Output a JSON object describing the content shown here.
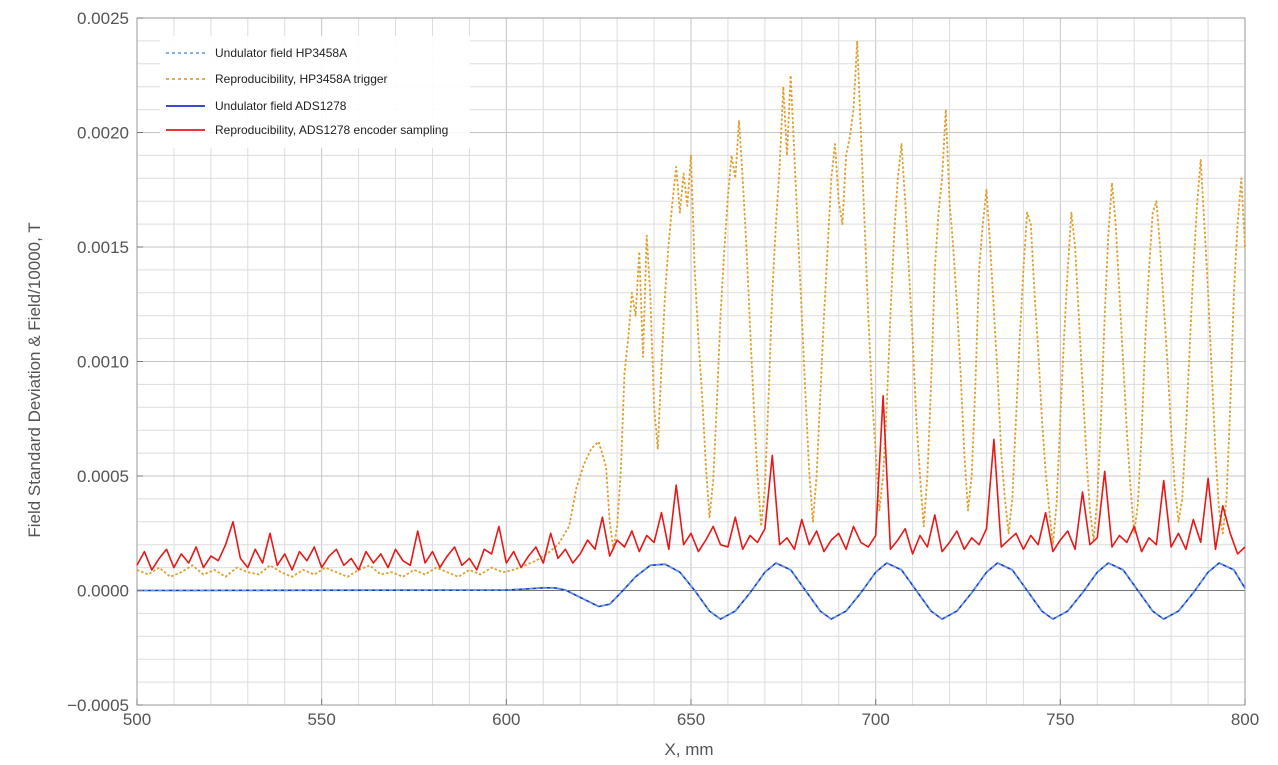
{
  "chart_data": {
    "type": "line",
    "title": "",
    "xlabel": "X, mm",
    "ylabel": "Field Standard Deviation & Field/10000, T",
    "xlim": [
      500,
      800
    ],
    "ylim": [
      -0.0005,
      0.0025
    ],
    "x_ticks": [
      500,
      550,
      600,
      650,
      700,
      750,
      800
    ],
    "x_tick_labels": [
      "500",
      "550",
      "600",
      "650",
      "700",
      "750",
      "800"
    ],
    "y_ticks": [
      -0.0005,
      0.0,
      0.0005,
      0.001,
      0.0015,
      0.002,
      0.0025
    ],
    "y_tick_labels": [
      "−0.0005",
      "0.0000",
      "0.0005",
      "0.0010",
      "0.0015",
      "0.0020",
      "0.0025"
    ],
    "grid": true,
    "legend_position": "top-left",
    "series": [
      {
        "name": "Undulator field HP3458A",
        "color": "#5b9bd5",
        "style": "dashed",
        "x": [
          500,
          600,
          605,
          610,
          613,
          616,
          620,
          625,
          628,
          631,
          635,
          639,
          643,
          647,
          651,
          655,
          658,
          662,
          666,
          670,
          673,
          677,
          681,
          685,
          688,
          692,
          696,
          700,
          703,
          707,
          711,
          715,
          718,
          722,
          726,
          730,
          733,
          737,
          741,
          745,
          748,
          752,
          756,
          760,
          763,
          767,
          771,
          775,
          778,
          782,
          786,
          790,
          793,
          797,
          800
        ],
        "y": [
          0.0,
          2e-06,
          6e-06,
          1.2e-05,
          1.2e-05,
          2e-06,
          -3e-05,
          -7e-05,
          -6e-05,
          -1e-05,
          6e-05,
          0.00011,
          0.000115,
          8e-05,
          0.0,
          -9e-05,
          -0.000125,
          -9e-05,
          -1e-05,
          8e-05,
          0.00012,
          9e-05,
          0.0,
          -9e-05,
          -0.000125,
          -9e-05,
          -1e-05,
          8e-05,
          0.00012,
          9e-05,
          0.0,
          -9e-05,
          -0.000125,
          -9e-05,
          -1e-05,
          8e-05,
          0.00012,
          9e-05,
          0.0,
          -9e-05,
          -0.000125,
          -9e-05,
          -1e-05,
          8e-05,
          0.00012,
          9e-05,
          0.0,
          -9e-05,
          -0.000125,
          -9e-05,
          -1e-05,
          8e-05,
          0.00012,
          9e-05,
          1e-05
        ]
      },
      {
        "name": "Reproducibility, HP3458A trigger",
        "color": "#e0a030",
        "style": "dotted",
        "x": [
          500,
          503,
          506,
          509,
          512,
          515,
          518,
          521,
          524,
          527,
          530,
          533,
          536,
          539,
          542,
          545,
          548,
          551,
          554,
          557,
          560,
          563,
          566,
          569,
          572,
          575,
          578,
          581,
          584,
          587,
          590,
          593,
          596,
          599,
          602,
          605,
          608,
          611,
          614,
          617,
          619,
          621,
          623,
          625,
          627,
          628,
          629,
          630,
          631,
          632,
          633,
          634,
          635,
          636,
          637,
          638,
          639,
          640,
          641,
          642,
          643,
          644,
          645,
          646,
          647,
          648,
          649,
          650,
          651,
          652,
          653,
          654,
          655,
          656,
          657,
          658,
          659,
          660,
          661,
          662,
          663,
          664,
          665,
          666,
          667,
          668,
          669,
          670,
          671,
          672,
          673,
          674,
          675,
          676,
          677,
          678,
          679,
          680,
          681,
          682,
          683,
          684,
          685,
          686,
          687,
          688,
          689,
          690,
          691,
          692,
          693,
          694,
          695,
          696,
          697,
          698,
          699,
          700,
          701,
          702,
          703,
          704,
          705,
          706,
          707,
          708,
          709,
          710,
          711,
          712,
          713,
          714,
          715,
          716,
          717,
          718,
          719,
          720,
          721,
          722,
          723,
          724,
          725,
          726,
          727,
          728,
          729,
          730,
          731,
          732,
          733,
          734,
          735,
          736,
          737,
          738,
          739,
          740,
          741,
          742,
          743,
          744,
          745,
          746,
          747,
          748,
          749,
          750,
          751,
          752,
          753,
          754,
          755,
          756,
          757,
          758,
          759,
          760,
          761,
          762,
          763,
          764,
          765,
          766,
          767,
          768,
          769,
          770,
          771,
          772,
          773,
          774,
          775,
          776,
          777,
          778,
          779,
          780,
          781,
          782,
          783,
          784,
          785,
          786,
          787,
          788,
          789,
          790,
          791,
          792,
          793,
          794,
          795,
          796,
          797,
          798,
          799,
          800
        ],
        "y": [
          9e-05,
          7e-05,
          0.0001,
          6e-05,
          8e-05,
          0.00011,
          7e-05,
          9e-05,
          6e-05,
          0.0001,
          8e-05,
          7e-05,
          0.00011,
          8e-05,
          6e-05,
          9e-05,
          7e-05,
          0.0001,
          8e-05,
          6e-05,
          9e-05,
          0.00011,
          7e-05,
          8e-05,
          6e-05,
          9e-05,
          7e-05,
          0.0001,
          8e-05,
          6e-05,
          9e-05,
          7e-05,
          0.0001,
          8e-05,
          9e-05,
          0.00011,
          0.00013,
          0.00016,
          0.0002,
          0.00028,
          0.00045,
          0.00055,
          0.00062,
          0.00065,
          0.00054,
          0.0003,
          0.00018,
          0.00028,
          0.00052,
          0.00095,
          0.0011,
          0.0013,
          0.0012,
          0.00148,
          0.00102,
          0.00155,
          0.00128,
          0.0008,
          0.00062,
          0.00098,
          0.0013,
          0.00152,
          0.0017,
          0.00185,
          0.00165,
          0.00182,
          0.00168,
          0.0019,
          0.0014,
          0.0011,
          0.00085,
          0.00055,
          0.00032,
          0.00048,
          0.00082,
          0.0012,
          0.00148,
          0.00172,
          0.0019,
          0.0018,
          0.00205,
          0.0018,
          0.0015,
          0.00115,
          0.0008,
          0.0005,
          0.00028,
          0.00045,
          0.00085,
          0.0013,
          0.0016,
          0.00185,
          0.0022,
          0.0019,
          0.00225,
          0.0019,
          0.00155,
          0.0012,
          0.00085,
          0.00052,
          0.0003,
          0.0005,
          0.00085,
          0.0012,
          0.0015,
          0.0018,
          0.00195,
          0.0017,
          0.0016,
          0.0019,
          0.00198,
          0.0021,
          0.0024,
          0.002,
          0.0016,
          0.0012,
          0.00085,
          0.0006,
          0.00035,
          0.0005,
          0.0008,
          0.0012,
          0.00155,
          0.0018,
          0.00195,
          0.0017,
          0.0014,
          0.0011,
          0.00075,
          0.0005,
          0.00028,
          0.0005,
          0.0009,
          0.0014,
          0.00165,
          0.0018,
          0.0021,
          0.0017,
          0.0015,
          0.00125,
          0.00095,
          0.0006,
          0.00035,
          0.0005,
          0.0009,
          0.0014,
          0.0016,
          0.00175,
          0.0015,
          0.00122,
          0.00095,
          0.0006,
          0.0004,
          0.00025,
          0.0004,
          0.00075,
          0.0011,
          0.0014,
          0.00165,
          0.0016,
          0.0013,
          0.00105,
          0.00075,
          0.00052,
          0.00035,
          0.0002,
          0.00038,
          0.00075,
          0.0011,
          0.0014,
          0.00165,
          0.0015,
          0.0012,
          0.0009,
          0.0006,
          0.00035,
          0.00022,
          0.0004,
          0.00075,
          0.0012,
          0.00155,
          0.00178,
          0.0016,
          0.0013,
          0.001,
          0.0007,
          0.00045,
          0.00025,
          0.00038,
          0.00068,
          0.0011,
          0.0014,
          0.00165,
          0.0017,
          0.0015,
          0.00125,
          0.001,
          0.0007,
          0.00045,
          0.0003,
          0.0004,
          0.0007,
          0.00105,
          0.0014,
          0.00168,
          0.00188,
          0.0016,
          0.0013,
          0.00095,
          0.0006,
          0.00035,
          0.00025,
          0.0004,
          0.0008,
          0.0013,
          0.0016,
          0.0018,
          0.0015
        ]
      },
      {
        "name": "Undulator field ADS1278",
        "color": "#1f2fd0",
        "style": "solid",
        "x": [
          500,
          600,
          605,
          610,
          613,
          616,
          620,
          625,
          628,
          631,
          635,
          639,
          643,
          647,
          651,
          655,
          658,
          662,
          666,
          670,
          673,
          677,
          681,
          685,
          688,
          692,
          696,
          700,
          703,
          707,
          711,
          715,
          718,
          722,
          726,
          730,
          733,
          737,
          741,
          745,
          748,
          752,
          756,
          760,
          763,
          767,
          771,
          775,
          778,
          782,
          786,
          790,
          793,
          797,
          800
        ],
        "y": [
          0.0,
          2e-06,
          6e-06,
          1.2e-05,
          1.2e-05,
          2e-06,
          -3e-05,
          -7e-05,
          -6e-05,
          -1e-05,
          6e-05,
          0.00011,
          0.000115,
          8e-05,
          0.0,
          -9e-05,
          -0.000125,
          -9e-05,
          -1e-05,
          8e-05,
          0.00012,
          9e-05,
          0.0,
          -9e-05,
          -0.000125,
          -9e-05,
          -1e-05,
          8e-05,
          0.00012,
          9e-05,
          0.0,
          -9e-05,
          -0.000125,
          -9e-05,
          -1e-05,
          8e-05,
          0.00012,
          9e-05,
          0.0,
          -9e-05,
          -0.000125,
          -9e-05,
          -1e-05,
          8e-05,
          0.00012,
          9e-05,
          0.0,
          -9e-05,
          -0.000125,
          -9e-05,
          -1e-05,
          8e-05,
          0.00012,
          9e-05,
          1e-05
        ]
      },
      {
        "name": "Reproducibility, ADS1278 encoder sampling",
        "color": "#e81818",
        "style": "solid",
        "x": [
          500,
          502,
          504,
          506,
          508,
          510,
          512,
          514,
          516,
          518,
          520,
          522,
          524,
          526,
          528,
          530,
          532,
          534,
          536,
          538,
          540,
          542,
          544,
          546,
          548,
          550,
          552,
          554,
          556,
          558,
          560,
          562,
          564,
          566,
          568,
          570,
          572,
          574,
          576,
          578,
          580,
          582,
          584,
          586,
          588,
          590,
          592,
          594,
          596,
          598,
          600,
          602,
          604,
          606,
          608,
          610,
          612,
          614,
          616,
          618,
          620,
          622,
          624,
          626,
          628,
          630,
          632,
          634,
          636,
          638,
          640,
          642,
          644,
          646,
          648,
          650,
          652,
          654,
          656,
          658,
          660,
          662,
          664,
          666,
          668,
          670,
          672,
          674,
          676,
          678,
          680,
          682,
          684,
          686,
          688,
          690,
          692,
          694,
          696,
          698,
          700,
          702,
          704,
          706,
          708,
          710,
          712,
          714,
          716,
          718,
          720,
          722,
          724,
          726,
          728,
          730,
          732,
          734,
          736,
          738,
          740,
          742,
          744,
          746,
          748,
          750,
          752,
          754,
          756,
          758,
          760,
          762,
          764,
          766,
          768,
          770,
          772,
          774,
          776,
          778,
          780,
          782,
          784,
          786,
          788,
          790,
          792,
          794,
          796,
          798,
          800
        ],
        "y": [
          0.00011,
          0.00017,
          9e-05,
          0.00014,
          0.00018,
          0.0001,
          0.00016,
          0.00012,
          0.00019,
          0.0001,
          0.00015,
          0.00013,
          0.0002,
          0.0003,
          0.00014,
          0.0001,
          0.00018,
          0.00012,
          0.00025,
          0.00011,
          0.00016,
          9e-05,
          0.00017,
          0.00013,
          0.00019,
          0.0001,
          0.00015,
          0.00018,
          0.00011,
          0.00014,
          9e-05,
          0.00017,
          0.00012,
          0.00016,
          0.0001,
          0.00018,
          0.00013,
          0.00011,
          0.00026,
          0.00012,
          0.00017,
          0.0001,
          0.00015,
          0.00019,
          0.00011,
          0.00014,
          9e-05,
          0.00018,
          0.00016,
          0.00028,
          0.00012,
          0.00017,
          0.0001,
          0.00015,
          0.00019,
          0.00012,
          0.00025,
          0.00014,
          0.00018,
          0.00012,
          0.00016,
          0.00022,
          0.00018,
          0.00032,
          0.00015,
          0.00022,
          0.00019,
          0.00026,
          0.00017,
          0.00024,
          0.00021,
          0.00034,
          0.00018,
          0.00046,
          0.0002,
          0.00025,
          0.00017,
          0.00022,
          0.00028,
          0.0002,
          0.00019,
          0.00032,
          0.00018,
          0.00024,
          0.00021,
          0.00027,
          0.00059,
          0.0002,
          0.00023,
          0.00018,
          0.00031,
          0.0002,
          0.00026,
          0.00017,
          0.00022,
          0.00025,
          0.00018,
          0.00028,
          0.00021,
          0.00019,
          0.00024,
          0.00085,
          0.00018,
          0.00022,
          0.00027,
          0.00016,
          0.00024,
          0.00019,
          0.00033,
          0.00017,
          0.00021,
          0.00026,
          0.00018,
          0.00023,
          0.0002,
          0.00027,
          0.00066,
          0.00019,
          0.00022,
          0.00025,
          0.00018,
          0.00024,
          0.0002,
          0.00034,
          0.00017,
          0.00022,
          0.00026,
          0.00018,
          0.00043,
          0.0002,
          0.00023,
          0.00052,
          0.00019,
          0.00024,
          0.00021,
          0.00028,
          0.00017,
          0.00023,
          0.0002,
          0.00048,
          0.00019,
          0.00025,
          0.00018,
          0.00031,
          0.00021,
          0.00049,
          0.00018,
          0.00037,
          0.00025,
          0.00016,
          0.00019
        ]
      }
    ]
  }
}
